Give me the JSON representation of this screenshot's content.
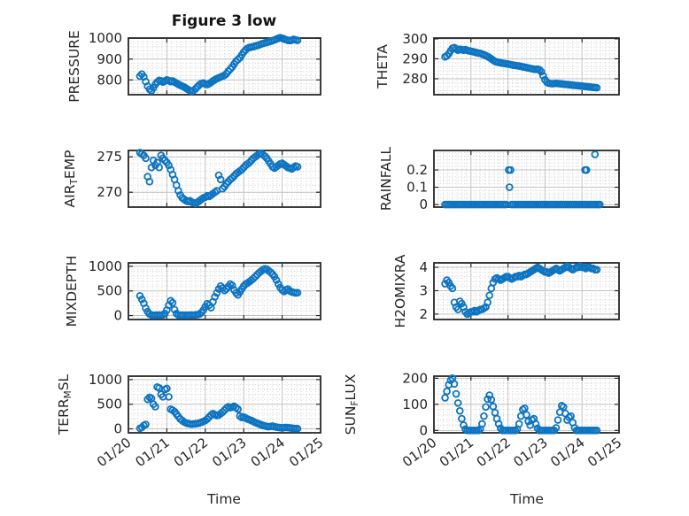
{
  "figure": {
    "title": "Figure 3 low",
    "xlabel": "Time",
    "accent_color": "#0d74c1",
    "axis_color": "#262626",
    "grid_major_color": "#c3c3c3",
    "grid_minor_color": "#cfcfcf",
    "text_color": "#262626",
    "xtick_labels": [
      "01/20",
      "01/21",
      "01/22",
      "01/23",
      "01/24",
      "01/25"
    ]
  },
  "chart_data": [
    {
      "type": "scatter",
      "name": "pressure",
      "ylabel": "PRESSURE",
      "ylabel_parts": [
        {
          "t": "PRESSURE",
          "sub": false
        }
      ],
      "yticks": [
        800,
        900,
        1000
      ],
      "ylim": [
        729,
        1001
      ],
      "xlim_days": [
        0,
        5
      ],
      "x_start": 0.3,
      "x_step": 0.05,
      "y": [
        818,
        828,
        815,
        792,
        770,
        755,
        748,
        762,
        778,
        790,
        798,
        795,
        790,
        795,
        800,
        797,
        792,
        795,
        790,
        784,
        779,
        774,
        770,
        766,
        760,
        754,
        749,
        745,
        750,
        758,
        768,
        777,
        783,
        785,
        780,
        778,
        782,
        788,
        795,
        801,
        806,
        810,
        814,
        818,
        822,
        830,
        842,
        852,
        862,
        876,
        890,
        898,
        906,
        920,
        934,
        944,
        952,
        956,
        958,
        960,
        963,
        965,
        968,
        972,
        975,
        978,
        980,
        983,
        986,
        989,
        992,
        996,
        1000,
        1003,
        1000,
        997,
        993,
        990,
        989,
        991,
        995,
        992,
        990
      ]
    },
    {
      "type": "scatter",
      "name": "theta",
      "ylabel": "THETA",
      "ylabel_parts": [
        {
          "t": "THETA",
          "sub": false
        }
      ],
      "yticks": [
        280,
        290,
        300
      ],
      "ylim": [
        272,
        300.4
      ],
      "xlim_days": [
        0,
        5
      ],
      "x_start": 0.3,
      "x_step": 0.05,
      "y": [
        291,
        291.5,
        292.5,
        294,
        295.3,
        295.6,
        295,
        294.3,
        294.8,
        294.6,
        294.3,
        294.6,
        294.2,
        294,
        293.8,
        293.6,
        293.4,
        293.1,
        292.9,
        292.7,
        292.4,
        292,
        291.6,
        291.2,
        290.6,
        290,
        289.3,
        288.7,
        288.4,
        288.2,
        288,
        287.8,
        287.7,
        287.5,
        287.4,
        287.2,
        287,
        286.8,
        286.7,
        286.5,
        286.4,
        286.2,
        286,
        285.8,
        285.6,
        285.4,
        285.2,
        285,
        284.8,
        284.7,
        284.8,
        284.5,
        283.5,
        281.5,
        279.5,
        278.3,
        277.8,
        277.6,
        277.5,
        277.6,
        277.7,
        277.6,
        277.5,
        277.4,
        277.3,
        277.2,
        277.1,
        277,
        276.9,
        276.8,
        276.7,
        276.6,
        276.5,
        276.4,
        276.3,
        276.2,
        276.1,
        276,
        275.9,
        275.8,
        275.7,
        275.6,
        275.5
      ]
    },
    {
      "type": "scatter",
      "name": "air-temp",
      "ylabel": "AIR_TEMP",
      "ylabel_parts": [
        {
          "t": "AIR",
          "sub": false
        },
        {
          "t": "T",
          "sub": true
        },
        {
          "t": "EMP",
          "sub": false
        }
      ],
      "yticks": [
        270,
        275
      ],
      "ylim": [
        267.9,
        275.9
      ],
      "xlim_days": [
        0,
        5
      ],
      "x_start": 0.3,
      "x_step": 0.05,
      "y": [
        275.6,
        275.4,
        275.2,
        274.8,
        272.2,
        271.5,
        273.5,
        274.5,
        273.8,
        274.2,
        273.5,
        275.2,
        274.8,
        274.5,
        274.2,
        273.8,
        273.2,
        272.5,
        271.8,
        271,
        270.2,
        269.6,
        269.2,
        269,
        268.8,
        268.7,
        268.8,
        268.6,
        268.5,
        268.4,
        268.6,
        268.8,
        269,
        269.2,
        269.3,
        269.5,
        269.4,
        269.6,
        269.8,
        270,
        270.2,
        272.4,
        271.8,
        270.5,
        270.8,
        271.2,
        271.5,
        271.8,
        272,
        272.3,
        272.6,
        272.8,
        273,
        273.2,
        273.5,
        273.8,
        274,
        274.2,
        274.5,
        274.8,
        275,
        275.2,
        275.4,
        275.5,
        275.3,
        275.1,
        274.8,
        274.4,
        274,
        273.6,
        273.4,
        273.6,
        273.8,
        274,
        274.1,
        273.9,
        273.7,
        273.5,
        273.4,
        273.3,
        273.5,
        273.7,
        273.6
      ]
    },
    {
      "type": "scatter",
      "name": "rainfall",
      "ylabel": "RAINFALL",
      "ylabel_parts": [
        {
          "t": "RAINFALL",
          "sub": false
        }
      ],
      "yticks": [
        0,
        0.1,
        0.2
      ],
      "ylim": [
        -0.015,
        0.313
      ],
      "xlim_days": [
        0,
        5
      ],
      "x_start": 0.3,
      "x_step": 0.05,
      "y": [
        0,
        0,
        0,
        0,
        0,
        0,
        0,
        0,
        0,
        0,
        0,
        0,
        0,
        0,
        0,
        0,
        0,
        0,
        0,
        0,
        0,
        0,
        0,
        0,
        0,
        0,
        0,
        0,
        0,
        0,
        0,
        0,
        0,
        0,
        null,
        null,
        0,
        0,
        0,
        0,
        0,
        0,
        0,
        0,
        0,
        0,
        0,
        0,
        0,
        0,
        0,
        0,
        0,
        0,
        0,
        0,
        0,
        0,
        0,
        0,
        0,
        0,
        0,
        0,
        0,
        0,
        0,
        0,
        0,
        0,
        0,
        0,
        0,
        0,
        0,
        0,
        0,
        0,
        0,
        0,
        0,
        0,
        0
      ],
      "extra_points": [
        [
          2.02,
          0.2
        ],
        [
          2.07,
          0.2
        ],
        [
          2.04,
          0.1
        ],
        [
          4.08,
          0.2
        ],
        [
          4.12,
          0.2
        ],
        [
          4.35,
          0.29
        ],
        [
          4.45,
          0
        ],
        [
          4.48,
          0
        ]
      ]
    },
    {
      "type": "scatter",
      "name": "mixdepth",
      "ylabel": "MIXDEPTH",
      "ylabel_parts": [
        {
          "t": "MIXDEPTH",
          "sub": false
        }
      ],
      "yticks": [
        0,
        500,
        1000
      ],
      "ylim": [
        -80,
        1070
      ],
      "xlim_days": [
        0,
        5
      ],
      "x_start": 0.3,
      "x_step": 0.05,
      "y": [
        400,
        330,
        250,
        150,
        80,
        30,
        10,
        5,
        8,
        10,
        12,
        10,
        15,
        40,
        110,
        210,
        300,
        260,
        120,
        40,
        10,
        5,
        8,
        10,
        6,
        8,
        10,
        12,
        10,
        15,
        20,
        30,
        60,
        110,
        180,
        240,
        210,
        160,
        280,
        380,
        460,
        540,
        600,
        560,
        510,
        540,
        590,
        640,
        610,
        520,
        460,
        420,
        480,
        540,
        600,
        640,
        660,
        690,
        720,
        750,
        790,
        830,
        870,
        900,
        930,
        950,
        940,
        910,
        880,
        840,
        790,
        720,
        640,
        570,
        520,
        490,
        520,
        540,
        500,
        480,
        470,
        460,
        465
      ]
    },
    {
      "type": "scatter",
      "name": "h2omixra",
      "ylabel": "H2OMIXRA",
      "ylabel_parts": [
        {
          "t": "H2OMIXRA",
          "sub": false
        }
      ],
      "yticks": [
        2,
        3,
        4
      ],
      "ylim": [
        1.77,
        4.19
      ],
      "xlim_days": [
        0,
        5
      ],
      "x_start": 0.3,
      "x_step": 0.05,
      "y": [
        3.3,
        3.45,
        3.35,
        3.2,
        3.1,
        2.5,
        2.3,
        2.2,
        2.55,
        2.45,
        2.3,
        2.1,
        2,
        2.05,
        2.1,
        2.1,
        2.15,
        2.1,
        2.15,
        2.2,
        2.2,
        2.25,
        2.3,
        2.5,
        2.8,
        3.1,
        3.35,
        3.5,
        3.55,
        3.5,
        3.45,
        3.5,
        3.55,
        3.6,
        3.6,
        3.55,
        3.5,
        3.55,
        3.6,
        3.6,
        3.65,
        3.6,
        3.65,
        3.7,
        3.7,
        3.75,
        3.8,
        3.85,
        3.9,
        3.95,
        4,
        3.95,
        3.9,
        3.85,
        3.8,
        3.8,
        3.75,
        3.8,
        3.85,
        3.9,
        3.95,
        3.9,
        3.85,
        3.9,
        3.95,
        4,
        4.05,
        4,
        3.95,
        3.9,
        3.95,
        4,
        4,
        4.05,
        4,
        4,
        3.95,
        4,
        4,
        3.95,
        3.95,
        3.9,
        3.9
      ]
    },
    {
      "type": "scatter",
      "name": "terr-msl",
      "ylabel": "TERR_MSL",
      "ylabel_parts": [
        {
          "t": "TERR",
          "sub": false
        },
        {
          "t": "M",
          "sub": true
        },
        {
          "t": "SL",
          "sub": false
        }
      ],
      "yticks": [
        0,
        500,
        1000
      ],
      "ylim": [
        -80,
        1070
      ],
      "xlim_days": [
        0,
        5
      ],
      "x_start": 0.3,
      "x_step": 0.05,
      "y": [
        10,
        30,
        70,
        90,
        600,
        640,
        620,
        500,
        450,
        850,
        830,
        700,
        650,
        800,
        820,
        650,
        400,
        380,
        350,
        300,
        250,
        200,
        170,
        140,
        120,
        110,
        100,
        95,
        100,
        105,
        110,
        120,
        135,
        150,
        170,
        200,
        240,
        280,
        310,
        290,
        270,
        280,
        310,
        340,
        380,
        420,
        450,
        430,
        440,
        460,
        430,
        400,
        260,
        230,
        240,
        220,
        200,
        185,
        170,
        150,
        130,
        115,
        100,
        85,
        70,
        60,
        50,
        45,
        50,
        55,
        45,
        35,
        30,
        25,
        20,
        25,
        30,
        25,
        20,
        15,
        10,
        5,
        5
      ]
    },
    {
      "type": "scatter",
      "name": "sun-flux",
      "ylabel": "SUN_FLUX",
      "ylabel_parts": [
        {
          "t": "SUN",
          "sub": false
        },
        {
          "t": "F",
          "sub": true
        },
        {
          "t": "LUX",
          "sub": false
        }
      ],
      "yticks": [
        0,
        100,
        200
      ],
      "ylim": [
        -9,
        208
      ],
      "xlim_days": [
        0,
        5
      ],
      "x_start": 0.3,
      "x_step": 0.05,
      "y": [
        125,
        150,
        175,
        192,
        200,
        178,
        140,
        105,
        75,
        45,
        20,
        5,
        0,
        0,
        0,
        0,
        0,
        0,
        0,
        5,
        25,
        55,
        90,
        120,
        135,
        118,
        92,
        68,
        45,
        25,
        8,
        0,
        0,
        0,
        0,
        0,
        0,
        0,
        0,
        5,
        25,
        55,
        80,
        85,
        60,
        35,
        20,
        40,
        45,
        25,
        8,
        0,
        0,
        0,
        0,
        0,
        0,
        0,
        0,
        0,
        10,
        40,
        70,
        95,
        90,
        65,
        40,
        50,
        55,
        30,
        10,
        0,
        0,
        0,
        0,
        0,
        0,
        0,
        0,
        0,
        0,
        0,
        0
      ]
    }
  ]
}
